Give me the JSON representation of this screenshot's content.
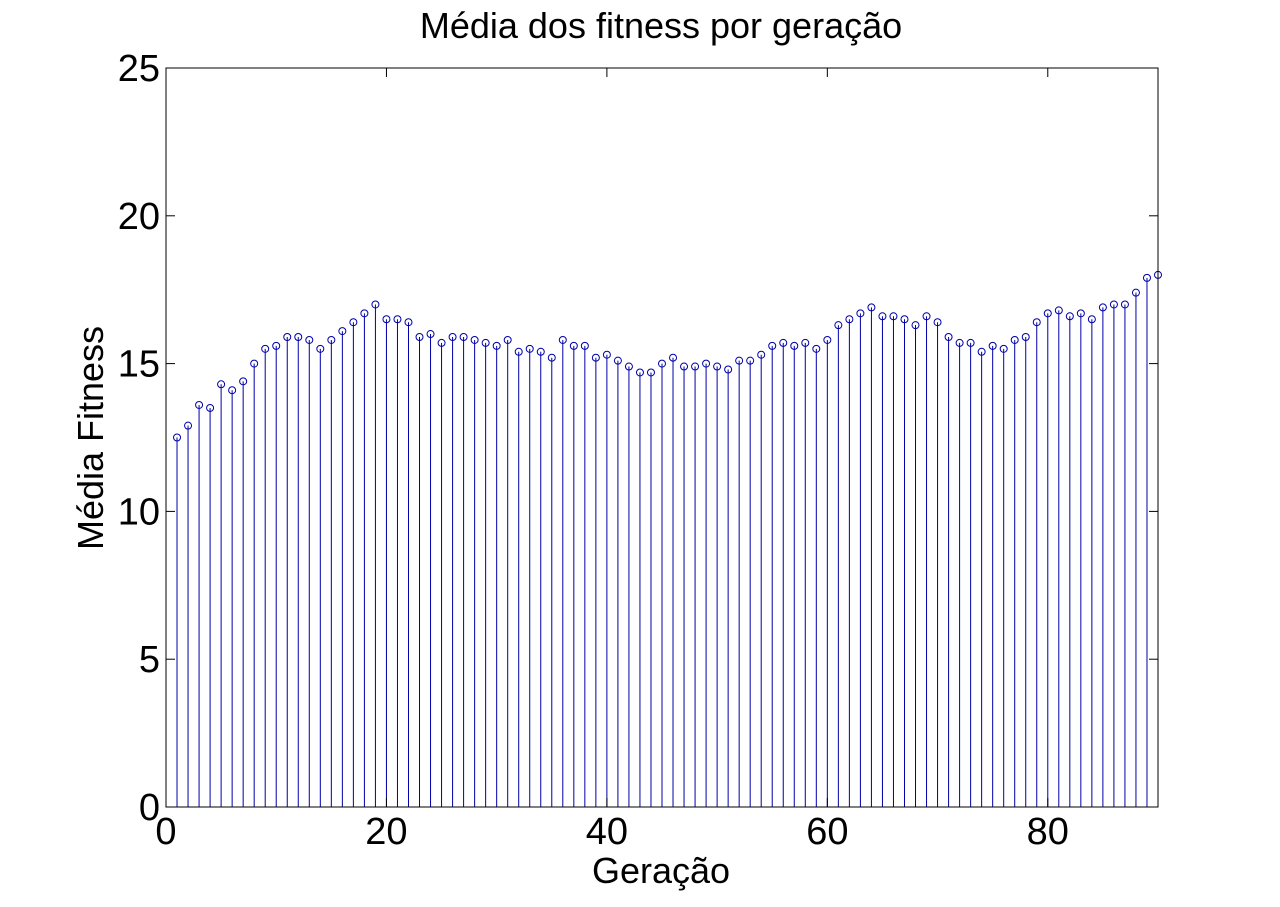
{
  "chart_data": {
    "type": "stem",
    "title": "Média dos fitness por geração",
    "xlabel": "Geração",
    "ylabel": "Média Fitness",
    "xlim": [
      0,
      90
    ],
    "ylim": [
      0,
      25
    ],
    "xticks": [
      0,
      20,
      40,
      60,
      80
    ],
    "xtick_labels": [
      "0",
      "20",
      "40",
      "60",
      "80"
    ],
    "yticks": [
      0,
      5,
      10,
      15,
      20,
      25
    ],
    "ytick_labels": [
      "0",
      "5",
      "10",
      "15",
      "20",
      "25"
    ],
    "grid": false,
    "marker_color": "#0000aa",
    "x": [
      1,
      2,
      3,
      4,
      5,
      6,
      7,
      8,
      9,
      10,
      11,
      12,
      13,
      14,
      15,
      16,
      17,
      18,
      19,
      20,
      21,
      22,
      23,
      24,
      25,
      26,
      27,
      28,
      29,
      30,
      31,
      32,
      33,
      34,
      35,
      36,
      37,
      38,
      39,
      40,
      41,
      42,
      43,
      44,
      45,
      46,
      47,
      48,
      49,
      50,
      51,
      52,
      53,
      54,
      55,
      56,
      57,
      58,
      59,
      60,
      61,
      62,
      63,
      64,
      65,
      66,
      67,
      68,
      69,
      70,
      71,
      72,
      73,
      74,
      75,
      76,
      77,
      78,
      79,
      80,
      81,
      82,
      83,
      84,
      85,
      86,
      87,
      88,
      89,
      90
    ],
    "values": [
      12.5,
      12.9,
      13.6,
      13.5,
      14.3,
      14.1,
      14.4,
      15.0,
      15.5,
      15.6,
      15.9,
      15.9,
      15.8,
      15.5,
      15.8,
      16.1,
      16.4,
      16.7,
      17.0,
      16.5,
      16.5,
      16.4,
      15.9,
      16.0,
      15.7,
      15.9,
      15.9,
      15.8,
      15.7,
      15.6,
      15.8,
      15.4,
      15.5,
      15.4,
      15.2,
      15.8,
      15.6,
      15.6,
      15.2,
      15.3,
      15.1,
      14.9,
      14.7,
      14.7,
      15.0,
      15.2,
      14.9,
      14.9,
      15.0,
      14.9,
      14.8,
      15.1,
      15.1,
      15.3,
      15.6,
      15.7,
      15.6,
      15.7,
      15.5,
      15.8,
      16.3,
      16.5,
      16.7,
      16.9,
      16.6,
      16.6,
      16.5,
      16.3,
      16.6,
      16.4,
      15.9,
      15.7,
      15.7,
      15.4,
      15.6,
      15.5,
      15.8,
      15.9,
      16.4,
      16.7,
      16.8,
      16.6,
      16.7,
      16.5,
      16.9,
      17.0,
      17.0,
      17.4,
      17.9,
      18.0
    ]
  }
}
